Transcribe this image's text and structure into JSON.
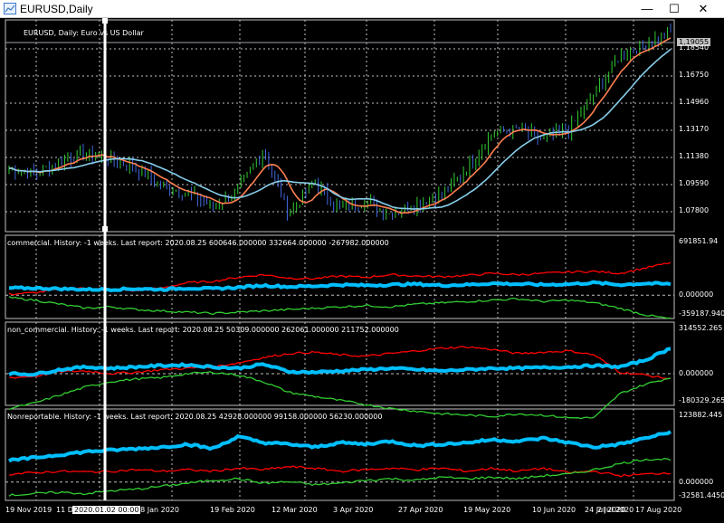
{
  "window": {
    "title": "EURUSD,Daily",
    "minimize_label": "—",
    "maximize_label": "☐",
    "close_label": "✕"
  },
  "main_panel": {
    "header": "EURUSD, Daily:  Euro vs US Dollar",
    "current_price": "1.19055",
    "y_ticks": [
      "1.18540",
      "1.16750",
      "1.14960",
      "1.13170",
      "1.11380",
      "1.09590",
      "1.07800"
    ]
  },
  "indicators": [
    {
      "header": "commercial. History: -1 weeks. Last report: 2020.08.25    600646.000000 332664.000000 -267982.000000",
      "y_ticks": [
        "691851.94",
        "0.000000",
        "-359187.940"
      ]
    },
    {
      "header": "non_commercial. History: -1 weeks. Last report: 2020.08.25    50309.000000 262061.000000 211752.000000",
      "y_ticks": [
        "314552.265",
        "0.000000",
        "-180329.265"
      ]
    },
    {
      "header": "Nonreportable. History: -1 weeks. Last report: 2020.08.25    42928.000000 99158.000000 56230.000000",
      "y_ticks": [
        "123882.445",
        "0.000000",
        "-32581.4450"
      ]
    }
  ],
  "x_axis": {
    "labels": [
      "19 Nov 2019",
      "11 Dec 2019",
      "28 Jan 2020",
      "19 Feb 2020",
      "12 Mar 2020",
      "3 Apr 2020",
      "27 Apr 2020",
      "19 May 2020",
      "10 Jun 2020",
      "2 Jul 2020",
      "24 Jul 2020",
      "17 Aug 2020"
    ],
    "cursor_label": "2020.01.02 00:00"
  },
  "colors": {
    "background": "#000000",
    "grid": "#c0c0c0",
    "bull_candle": "#32cd32",
    "bear_candle": "#4169e1",
    "ma_fast": "#ff7f50",
    "ma_slow": "#87ceeb",
    "series_net": "#00bfff",
    "series_long": "#ff0000",
    "series_short": "#32cd32",
    "crosshair": "#ffffff"
  },
  "chart_data": [
    {
      "type": "line",
      "title": "EURUSD, Daily:  Euro vs US Dollar",
      "series": [
        {
          "values": [
            1.108,
            1.105,
            1.112,
            1.116,
            1.113,
            1.108,
            1.098,
            1.094,
            1.086,
            1.095,
            1.118,
            1.082,
            1.1,
            1.085,
            1.089,
            1.082,
            1.088,
            1.093,
            1.108,
            1.128,
            1.13,
            1.124,
            1.13,
            1.15,
            1.172,
            1.178,
            1.186
          ]
        }
      ],
      "ylim": [
        1.072,
        1.192
      ]
    },
    {
      "type": "line",
      "title": "commercial"
    },
    {
      "type": "line",
      "title": "non_commercial"
    },
    {
      "type": "line",
      "title": "Nonreportable"
    }
  ]
}
